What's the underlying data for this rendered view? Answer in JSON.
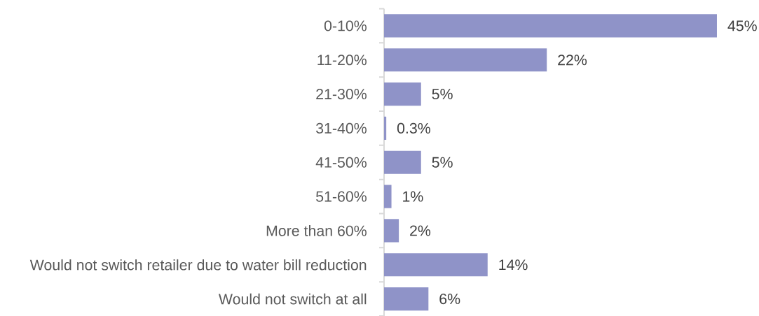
{
  "chart_data": {
    "type": "bar",
    "orientation": "horizontal",
    "categories": [
      "0-10%",
      "11-20%",
      "21-30%",
      "31-40%",
      "41-50%",
      "51-60%",
      "More than 60%",
      "Would not switch retailer due to water bill reduction",
      "Would not switch at all"
    ],
    "values": [
      45,
      22,
      5,
      0.3,
      5,
      1,
      2,
      14,
      6
    ],
    "value_labels": [
      "45%",
      "22%",
      "5%",
      "0.3%",
      "5%",
      "1%",
      "2%",
      "14%",
      "6%"
    ],
    "color": "#8f93c8",
    "tick_labels": "y"
  }
}
